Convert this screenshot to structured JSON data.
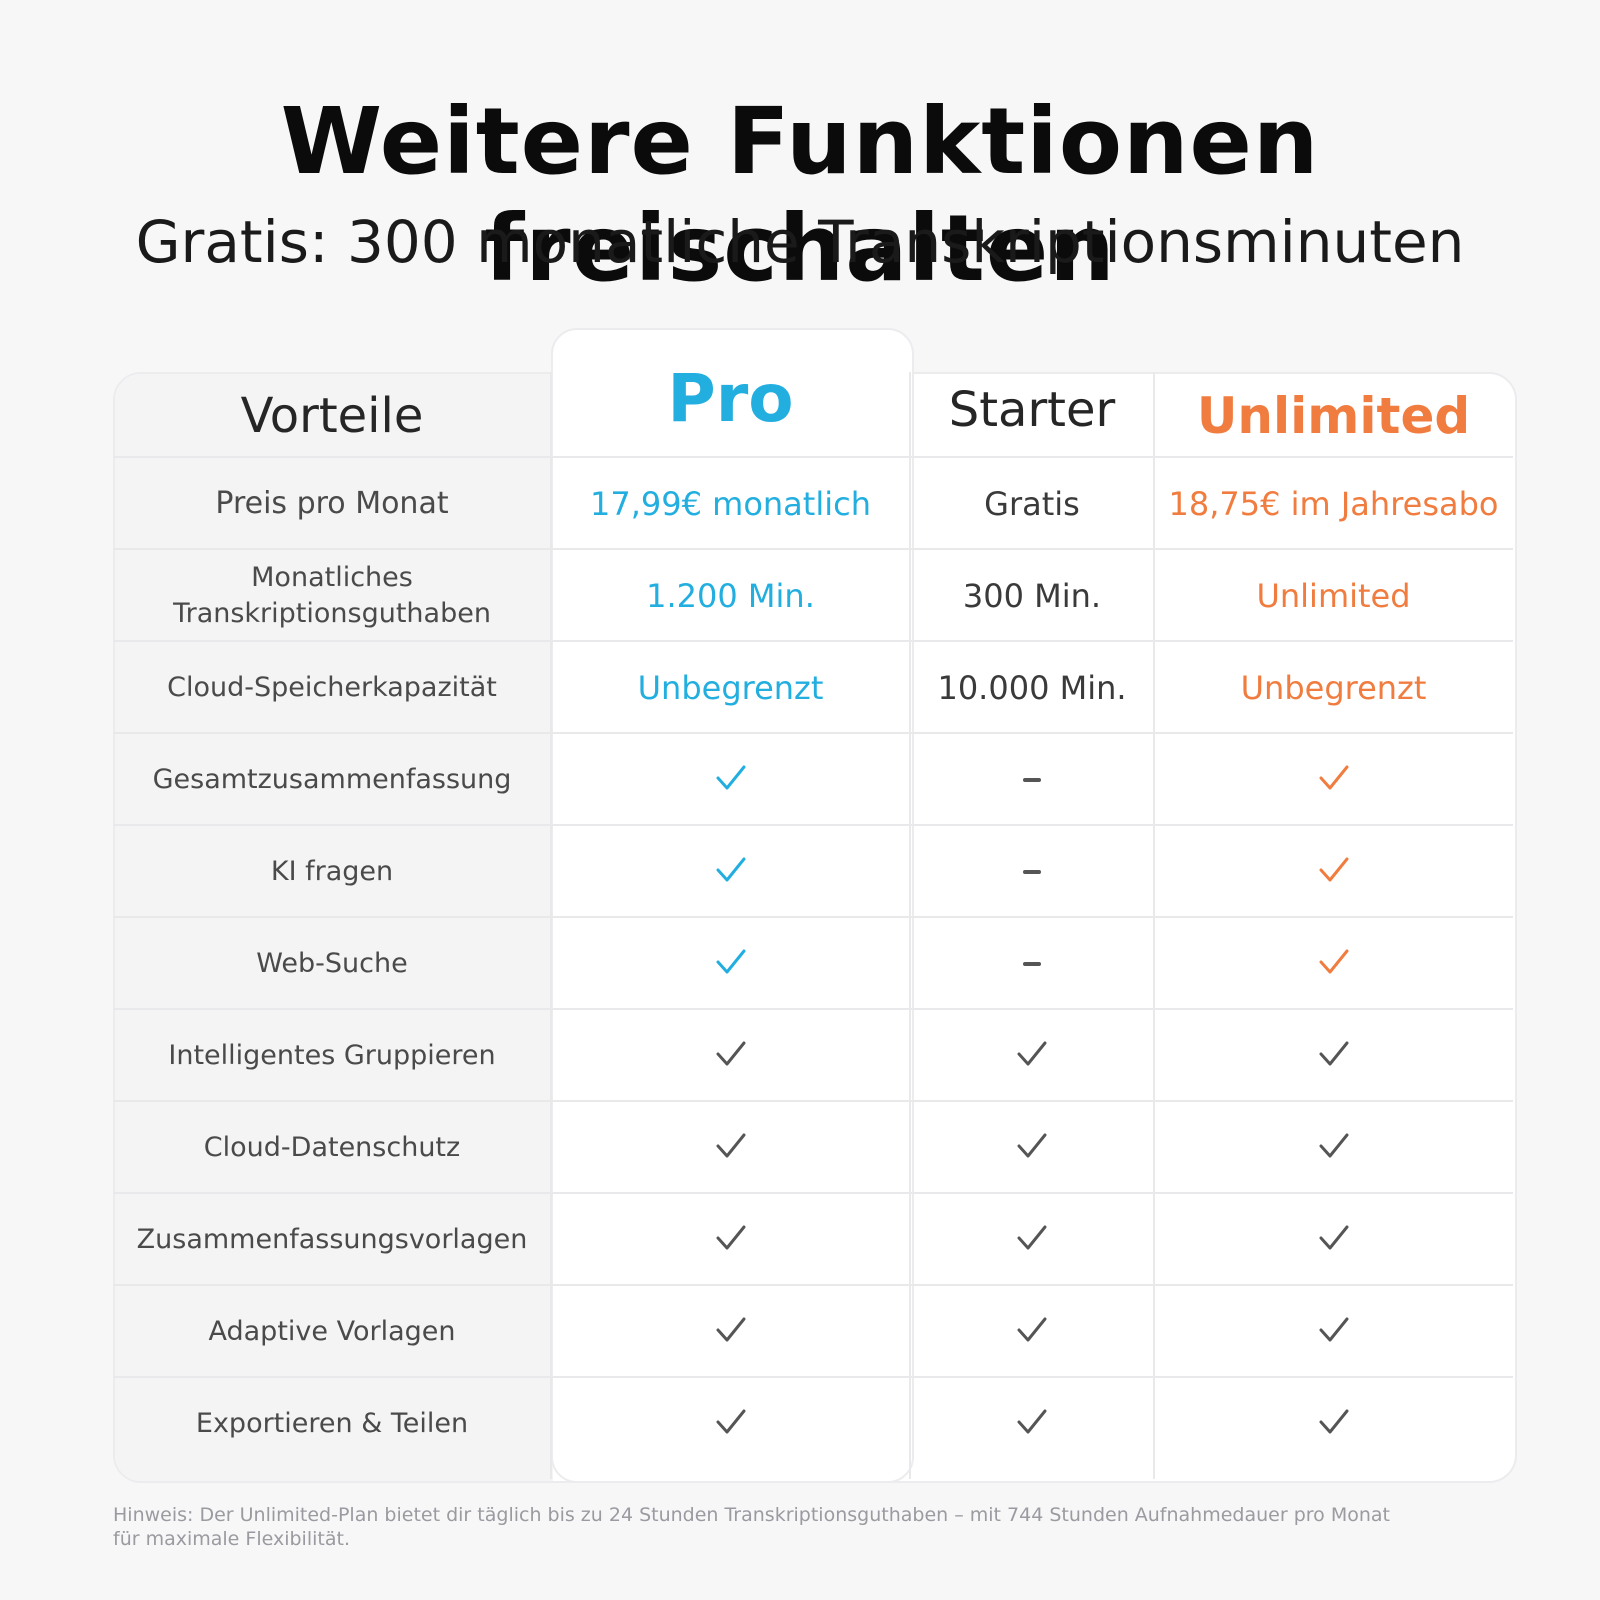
{
  "title": "Weitere Funktionen freischalten",
  "subtitle": "Gratis: 300 monatliche Transkriptionsminuten",
  "colors": {
    "pro": "#23aee0",
    "unlimited": "#f07d3f",
    "neutral": "#555555"
  },
  "table": {
    "headers": {
      "features": "Vorteile",
      "pro": "Pro",
      "starter": "Starter",
      "unlimited": "Unlimited"
    },
    "value_rows": [
      {
        "label": "Preis pro Monat",
        "pro": "17,99€ monatlich",
        "starter": "Gratis",
        "unlimited": "18,75€ im Jahresabo"
      },
      {
        "label": "Monatliches Transkriptionsguthaben",
        "pro": "1.200 Min.",
        "starter": "300 Min.",
        "unlimited": "Unlimited"
      },
      {
        "label": "Cloud-Speicherkapazität",
        "pro": "Unbegrenzt",
        "starter": "10.000 Min.",
        "unlimited": "Unbegrenzt"
      }
    ],
    "feature_rows": [
      {
        "label": "Gesamtzusammenfassung",
        "pro": "check-accent",
        "starter": "dash",
        "unlimited": "check-accent"
      },
      {
        "label": "KI fragen",
        "pro": "check-accent",
        "starter": "dash",
        "unlimited": "check-accent"
      },
      {
        "label": "Web-Suche",
        "pro": "check-accent",
        "starter": "dash",
        "unlimited": "check-accent"
      },
      {
        "label": "Intelligentes Gruppieren",
        "pro": "check",
        "starter": "check",
        "unlimited": "check"
      },
      {
        "label": "Cloud-Datenschutz",
        "pro": "check",
        "starter": "check",
        "unlimited": "check"
      },
      {
        "label": "Zusammenfassungsvorlagen",
        "pro": "check",
        "starter": "check",
        "unlimited": "check"
      },
      {
        "label": "Adaptive Vorlagen",
        "pro": "check",
        "starter": "check",
        "unlimited": "check"
      },
      {
        "label": "Exportieren & Teilen",
        "pro": "check",
        "starter": "check",
        "unlimited": "check"
      }
    ]
  },
  "note": "Hinweis: Der Unlimited-Plan bietet dir täglich bis zu 24 Stunden Transkriptionsguthaben – mit 744 Stunden Aufnahmedauer pro Monat für maximale Flexibilität."
}
